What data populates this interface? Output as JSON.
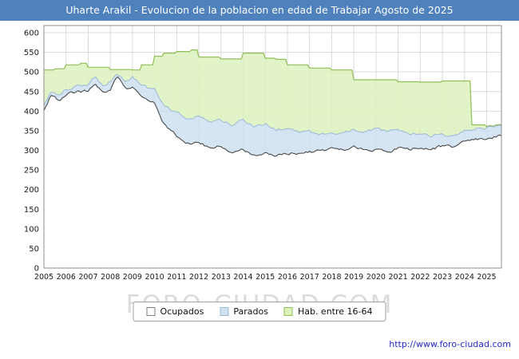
{
  "title_bar": {
    "text": "Uharte Arakil - Evolucion de la poblacion en edad de Trabajar Agosto de 2025"
  },
  "watermark_text": "FORO-CIUDAD.COM",
  "footer_url": "http://www.foro-ciudad.com",
  "colors": {
    "titlebar_bg": "#4f81bd",
    "titlebar_fg": "#ffffff",
    "grid": "#d9d9d9",
    "plot_border": "#8c8c8c",
    "axis_text": "#1a1a1a",
    "url_text": "#2929c8",
    "watermark": "#dcdcdc",
    "ocupados_line": "#4a4a4a",
    "parados_fill": "#cfe0f1",
    "parados_stroke": "#9ab8d8",
    "hab_fill": "#ddf2bd",
    "hab_stroke": "#8fbf55"
  },
  "legend": {
    "items": [
      {
        "label": "Ocupados",
        "fill": "#ffffff",
        "border": "#7f7f7f"
      },
      {
        "label": "Parados",
        "fill": "#cfe0f1",
        "border": "#9ab8d8"
      },
      {
        "label": "Hab. entre 16-64",
        "fill": "#ddf2bd",
        "border": "#8fbf55"
      }
    ]
  },
  "chart_data": {
    "type": "area",
    "title": "Uharte Arakil - Evolucion de la poblacion en edad de Trabajar Agosto de 2025",
    "xlabel": "",
    "ylabel": "",
    "x_range": [
      2005,
      2025.667
    ],
    "ylim": [
      0,
      600
    ],
    "y_ticks": [
      0,
      50,
      100,
      150,
      200,
      250,
      300,
      350,
      400,
      450,
      500,
      550,
      600
    ],
    "x_ticks": [
      2005,
      2006,
      2007,
      2008,
      2009,
      2010,
      2011,
      2012,
      2013,
      2014,
      2015,
      2016,
      2017,
      2018,
      2019,
      2020,
      2021,
      2022,
      2023,
      2024,
      2025
    ],
    "grid": true,
    "legend_position": "bottom",
    "series": [
      {
        "name": "Hab. entre 16-64",
        "mode": "step",
        "fill": "#ddf2bd",
        "stroke": "#8fbf55",
        "noise": 0,
        "anchors": [
          [
            2005,
            505
          ],
          [
            2005.5,
            508
          ],
          [
            2006,
            518
          ],
          [
            2006.6,
            522
          ],
          [
            2007,
            512
          ],
          [
            2008,
            506
          ],
          [
            2009,
            505
          ],
          [
            2009.4,
            518
          ],
          [
            2010,
            540
          ],
          [
            2010.4,
            548
          ],
          [
            2011,
            552
          ],
          [
            2011.6,
            556
          ],
          [
            2012,
            538
          ],
          [
            2013,
            533
          ],
          [
            2014,
            548
          ],
          [
            2015,
            535
          ],
          [
            2015.5,
            532
          ],
          [
            2016,
            518
          ],
          [
            2017,
            510
          ],
          [
            2018,
            505
          ],
          [
            2019,
            480
          ],
          [
            2020,
            480
          ],
          [
            2021,
            475
          ],
          [
            2022,
            474
          ],
          [
            2023,
            477
          ],
          [
            2024,
            477
          ],
          [
            2024.3,
            365
          ],
          [
            2025,
            360
          ]
        ]
      },
      {
        "name": "Ocupados+Parados",
        "mode": "linear",
        "fill": "#cfe0f1",
        "stroke": "#9ab8d8",
        "noise": 7,
        "anchors": [
          [
            2005,
            415
          ],
          [
            2005.3,
            448
          ],
          [
            2005.7,
            440
          ],
          [
            2006,
            455
          ],
          [
            2006.5,
            462
          ],
          [
            2007,
            468
          ],
          [
            2007.3,
            488
          ],
          [
            2007.7,
            462
          ],
          [
            2008,
            475
          ],
          [
            2008.3,
            495
          ],
          [
            2008.7,
            478
          ],
          [
            2009,
            488
          ],
          [
            2009.4,
            468
          ],
          [
            2009.8,
            455
          ],
          [
            2010,
            458
          ],
          [
            2010.4,
            418
          ],
          [
            2010.8,
            402
          ],
          [
            2011,
            396
          ],
          [
            2011.5,
            384
          ],
          [
            2012,
            386
          ],
          [
            2012.5,
            374
          ],
          [
            2013,
            378
          ],
          [
            2013.5,
            364
          ],
          [
            2014,
            378
          ],
          [
            2014.5,
            360
          ],
          [
            2015,
            368
          ],
          [
            2015.5,
            354
          ],
          [
            2016,
            356
          ],
          [
            2016.5,
            348
          ],
          [
            2017,
            346
          ],
          [
            2017.5,
            340
          ],
          [
            2018,
            348
          ],
          [
            2018.5,
            344
          ],
          [
            2019,
            352
          ],
          [
            2019.5,
            348
          ],
          [
            2020,
            356
          ],
          [
            2020.5,
            350
          ],
          [
            2021,
            352
          ],
          [
            2021.5,
            344
          ],
          [
            2022,
            342
          ],
          [
            2022.5,
            336
          ],
          [
            2023,
            340
          ],
          [
            2023.5,
            336
          ],
          [
            2024,
            352
          ],
          [
            2024.5,
            356
          ],
          [
            2025,
            358
          ],
          [
            2025.667,
            362
          ]
        ]
      },
      {
        "name": "Ocupados",
        "mode": "linear",
        "fill": "#ffffff",
        "stroke": "#4a4a4a",
        "noise": 7,
        "anchors": [
          [
            2005,
            398
          ],
          [
            2005.3,
            436
          ],
          [
            2005.7,
            428
          ],
          [
            2006,
            442
          ],
          [
            2006.5,
            448
          ],
          [
            2007,
            452
          ],
          [
            2007.3,
            470
          ],
          [
            2007.7,
            448
          ],
          [
            2008,
            455
          ],
          [
            2008.3,
            488
          ],
          [
            2008.7,
            460
          ],
          [
            2009,
            464
          ],
          [
            2009.4,
            440
          ],
          [
            2009.8,
            422
          ],
          [
            2010,
            420
          ],
          [
            2010.4,
            368
          ],
          [
            2010.8,
            348
          ],
          [
            2011,
            336
          ],
          [
            2011.5,
            318
          ],
          [
            2012,
            318
          ],
          [
            2012.5,
            306
          ],
          [
            2013,
            310
          ],
          [
            2013.5,
            294
          ],
          [
            2014,
            304
          ],
          [
            2014.5,
            286
          ],
          [
            2015,
            294
          ],
          [
            2015.5,
            286
          ],
          [
            2016,
            292
          ],
          [
            2016.5,
            294
          ],
          [
            2017,
            297
          ],
          [
            2017.5,
            299
          ],
          [
            2018,
            304
          ],
          [
            2018.5,
            301
          ],
          [
            2019,
            308
          ],
          [
            2019.5,
            304
          ],
          [
            2020,
            300
          ],
          [
            2020.5,
            294
          ],
          [
            2021,
            306
          ],
          [
            2021.5,
            303
          ],
          [
            2022,
            307
          ],
          [
            2022.5,
            303
          ],
          [
            2023,
            311
          ],
          [
            2023.5,
            308
          ],
          [
            2024,
            326
          ],
          [
            2024.5,
            330
          ],
          [
            2025,
            332
          ],
          [
            2025.667,
            337
          ]
        ]
      }
    ]
  }
}
